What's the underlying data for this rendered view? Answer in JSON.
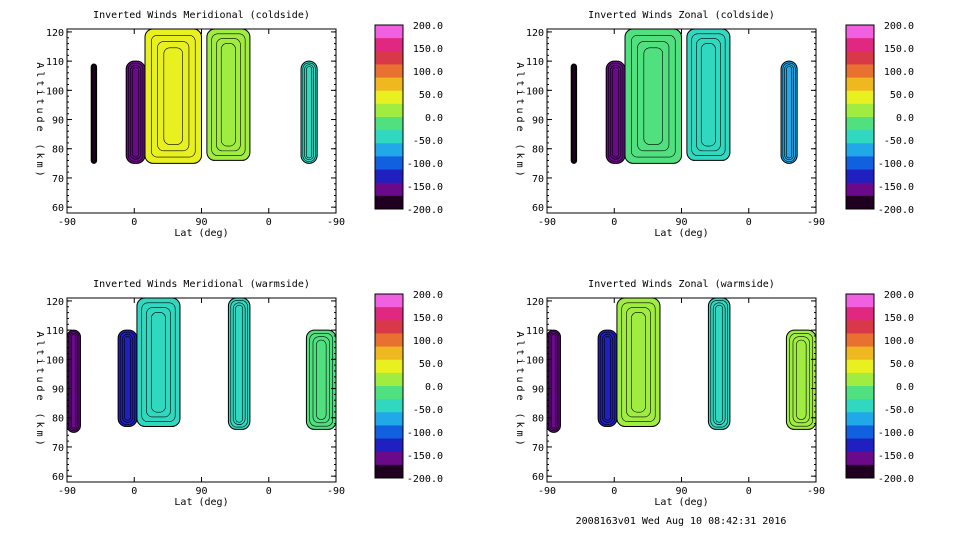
{
  "footer": "2008163v01 Wed Aug 10 08:42:31 2016",
  "colors": {
    "scale": [
      "#200020",
      "#6a0a8a",
      "#2020c0",
      "#1060e0",
      "#20a8e8",
      "#30d8c0",
      "#50e080",
      "#a0ec40",
      "#e8f020",
      "#f0b820",
      "#e87030",
      "#d83848",
      "#e02880",
      "#f060e0"
    ],
    "blank": "#ffffff",
    "frame": "#000000"
  },
  "colorbar": {
    "labels": [
      "200.0",
      "150.0",
      "100.0",
      "50.0",
      "0.0",
      "-50.0",
      "-100.0",
      "-150.0",
      "-200.0"
    ]
  },
  "chart_data": [
    {
      "type": "heatmap",
      "title": "Inverted Winds Meridional (coldside)",
      "xlabel": "Lat (deg)",
      "ylabel": "Altitude (km)",
      "xticks": [
        "-90",
        "0",
        "90",
        "0",
        "-90"
      ],
      "yticks": [
        "60",
        "70",
        "80",
        "90",
        "100",
        "110",
        "120"
      ],
      "ylim": [
        58,
        121
      ],
      "zlim": [
        -200,
        200
      ],
      "bands": [
        {
          "x0": 0.09,
          "x1": 0.11,
          "y0": 75,
          "y1": 109,
          "v": -200
        },
        {
          "x0": 0.22,
          "x1": 0.29,
          "y0": 75,
          "y1": 110,
          "v": -150
        },
        {
          "x0": 0.29,
          "x1": 0.5,
          "y0": 75,
          "y1": 121,
          "v": 30
        },
        {
          "x0": 0.52,
          "x1": 0.68,
          "y0": 76,
          "y1": 121,
          "v": 20
        },
        {
          "x0": 0.87,
          "x1": 0.93,
          "y0": 75,
          "y1": 110,
          "v": -40
        }
      ]
    },
    {
      "type": "heatmap",
      "title": "Inverted Winds Zonal (coldside)",
      "xlabel": "Lat (deg)",
      "ylabel": "Altitude (km)",
      "xticks": [
        "-90",
        "0",
        "90",
        "0",
        "-90"
      ],
      "yticks": [
        "60",
        "70",
        "80",
        "90",
        "100",
        "110",
        "120"
      ],
      "ylim": [
        58,
        121
      ],
      "zlim": [
        -200,
        200
      ],
      "bands": [
        {
          "x0": 0.09,
          "x1": 0.11,
          "y0": 75,
          "y1": 109,
          "v": -200
        },
        {
          "x0": 0.22,
          "x1": 0.29,
          "y0": 75,
          "y1": 110,
          "v": -150
        },
        {
          "x0": 0.29,
          "x1": 0.5,
          "y0": 75,
          "y1": 121,
          "v": -20
        },
        {
          "x0": 0.52,
          "x1": 0.68,
          "y0": 76,
          "y1": 121,
          "v": -40
        },
        {
          "x0": 0.87,
          "x1": 0.93,
          "y0": 75,
          "y1": 110,
          "v": -60
        }
      ]
    },
    {
      "type": "heatmap",
      "title": "Inverted Winds Meridional (warmside)",
      "xlabel": "Lat (deg)",
      "ylabel": "Altitude (km)",
      "xticks": [
        "-90",
        "0",
        "90",
        "0",
        "-90"
      ],
      "yticks": [
        "60",
        "70",
        "80",
        "90",
        "100",
        "110",
        "120"
      ],
      "ylim": [
        58,
        121
      ],
      "zlim": [
        -200,
        200
      ],
      "bands": [
        {
          "x0": 0.0,
          "x1": 0.05,
          "y0": 75,
          "y1": 110,
          "v": -170
        },
        {
          "x0": 0.19,
          "x1": 0.26,
          "y0": 77,
          "y1": 110,
          "v": -140
        },
        {
          "x0": 0.26,
          "x1": 0.42,
          "y0": 77,
          "y1": 121,
          "v": -40
        },
        {
          "x0": 0.6,
          "x1": 0.68,
          "y0": 76,
          "y1": 121,
          "v": -50
        },
        {
          "x0": 0.89,
          "x1": 1.0,
          "y0": 76,
          "y1": 110,
          "v": -20
        }
      ]
    },
    {
      "type": "heatmap",
      "title": "Inverted Winds Zonal (warmside)",
      "xlabel": "Lat (deg)",
      "ylabel": "Altitude (km)",
      "xticks": [
        "-90",
        "0",
        "90",
        "0",
        "-90"
      ],
      "yticks": [
        "60",
        "70",
        "80",
        "90",
        "100",
        "110",
        "120"
      ],
      "ylim": [
        58,
        121
      ],
      "zlim": [
        -200,
        200
      ],
      "bands": [
        {
          "x0": 0.0,
          "x1": 0.05,
          "y0": 75,
          "y1": 110,
          "v": -150
        },
        {
          "x0": 0.19,
          "x1": 0.26,
          "y0": 77,
          "y1": 110,
          "v": -120
        },
        {
          "x0": 0.26,
          "x1": 0.42,
          "y0": 77,
          "y1": 121,
          "v": 10
        },
        {
          "x0": 0.6,
          "x1": 0.68,
          "y0": 76,
          "y1": 121,
          "v": -30
        },
        {
          "x0": 0.89,
          "x1": 1.0,
          "y0": 76,
          "y1": 110,
          "v": 10
        }
      ]
    }
  ]
}
